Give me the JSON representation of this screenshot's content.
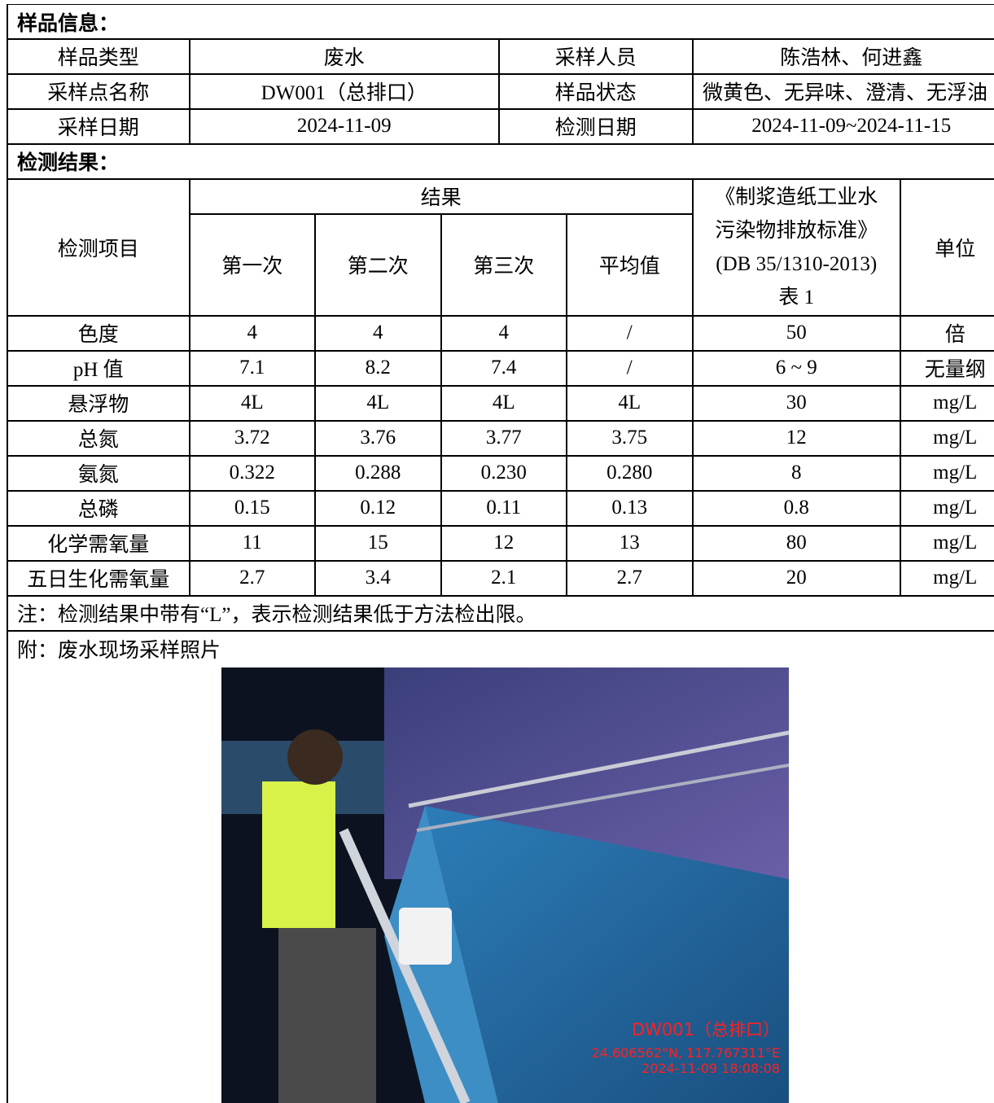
{
  "sample_info": {
    "title": "样品信息：",
    "rows": [
      [
        "样品类型",
        "废水",
        "采样人员",
        "陈浩林、何进鑫"
      ],
      [
        "采样点名称",
        "DW001（总排口）",
        "样品状态",
        "微黄色、无异味、澄清、无浮油"
      ],
      [
        "采样日期",
        "2024-11-09",
        "检测日期",
        "2024-11-09~2024-11-15"
      ]
    ]
  },
  "results": {
    "title": "检测结果：",
    "header": {
      "item": "检测项目",
      "result": "结果",
      "runs": [
        "第一次",
        "第二次",
        "第三次",
        "平均值"
      ],
      "standard": [
        "《制浆造纸工业水",
        "污染物排放标准》",
        "(DB 35/1310-2013)",
        "表 1"
      ],
      "unit": "单位"
    },
    "rows": [
      [
        "色度",
        "4",
        "4",
        "4",
        "/",
        "50",
        "倍"
      ],
      [
        "pH 值",
        "7.1",
        "8.2",
        "7.4",
        "/",
        "6 ~ 9",
        "无量纲"
      ],
      [
        "悬浮物",
        "4L",
        "4L",
        "4L",
        "4L",
        "30",
        "mg/L"
      ],
      [
        "总氮",
        "3.72",
        "3.76",
        "3.77",
        "3.75",
        "12",
        "mg/L"
      ],
      [
        "氨氮",
        "0.322",
        "0.288",
        "0.230",
        "0.280",
        "8",
        "mg/L"
      ],
      [
        "总磷",
        "0.15",
        "0.12",
        "0.11",
        "0.13",
        "0.8",
        "mg/L"
      ],
      [
        "化学需氧量",
        "11",
        "15",
        "12",
        "13",
        "80",
        "mg/L"
      ],
      [
        "五日生化需氧量",
        "2.7",
        "3.4",
        "2.1",
        "2.7",
        "20",
        "mg/L"
      ]
    ],
    "note": "注：检测结果中带有“L”，表示检测结果低于方法检出限。"
  },
  "attachment": {
    "title": "附：废水现场采样照片",
    "photo_caption": [
      "DW001（总排口）",
      "24.606562°N, 117.767311°E",
      "2024-11-09 18:08:08"
    ]
  }
}
